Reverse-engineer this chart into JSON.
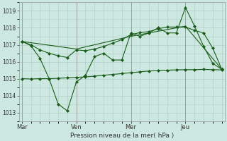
{
  "background_color": "#cce8e0",
  "plot_bg_color": "#cce8e0",
  "grid_color": "#b0ccc8",
  "line_color": "#1a5c1a",
  "xlabel": "Pression niveau de la mer( hPa )",
  "ylim": [
    1012.5,
    1019.5
  ],
  "yticks": [
    1013,
    1014,
    1015,
    1016,
    1017,
    1018,
    1019
  ],
  "day_labels": [
    "Mar",
    "Ven",
    "Mer",
    "Jeu"
  ],
  "day_positions": [
    0,
    6,
    12,
    18
  ],
  "vline_positions": [
    0,
    6,
    12,
    18
  ],
  "xlim": [
    -0.3,
    22.3
  ],
  "series1_x": [
    0,
    1,
    2,
    3,
    4,
    5,
    6,
    7,
    8,
    9,
    10,
    11,
    12,
    13,
    14,
    15,
    16,
    17,
    18,
    19,
    20,
    21,
    22
  ],
  "series1_y": [
    1017.2,
    1016.95,
    1016.2,
    1015.0,
    1013.5,
    1013.1,
    1014.8,
    1015.2,
    1016.3,
    1016.5,
    1016.1,
    1016.1,
    1017.7,
    1017.5,
    1017.7,
    1018.0,
    1017.7,
    1017.7,
    1019.2,
    1018.1,
    1016.9,
    1015.9,
    1015.55
  ],
  "series2_x": [
    0,
    1,
    2,
    3,
    4,
    5,
    6,
    7,
    8,
    9,
    10,
    11,
    12,
    13,
    14,
    15,
    16,
    17,
    18,
    19,
    20,
    21,
    22
  ],
  "series2_y": [
    1017.2,
    1017.0,
    1016.7,
    1016.5,
    1016.35,
    1016.25,
    1016.7,
    1016.65,
    1016.75,
    1016.9,
    1017.1,
    1017.3,
    1017.6,
    1017.72,
    1017.78,
    1017.95,
    1018.05,
    1018.05,
    1018.05,
    1017.85,
    1017.7,
    1016.8,
    1015.55
  ],
  "series3_x": [
    0,
    6,
    12,
    18,
    22
  ],
  "series3_y": [
    1017.2,
    1016.75,
    1017.5,
    1018.1,
    1015.55
  ],
  "series4_x": [
    0,
    1,
    2,
    3,
    4,
    5,
    6,
    7,
    8,
    9,
    10,
    11,
    12,
    13,
    14,
    15,
    16,
    17,
    18,
    19,
    20,
    21,
    22
  ],
  "series4_y": [
    1015.0,
    1014.98,
    1015.0,
    1015.0,
    1015.02,
    1015.05,
    1015.08,
    1015.1,
    1015.15,
    1015.2,
    1015.25,
    1015.3,
    1015.35,
    1015.4,
    1015.45,
    1015.48,
    1015.5,
    1015.52,
    1015.53,
    1015.53,
    1015.55,
    1015.53,
    1015.52
  ]
}
